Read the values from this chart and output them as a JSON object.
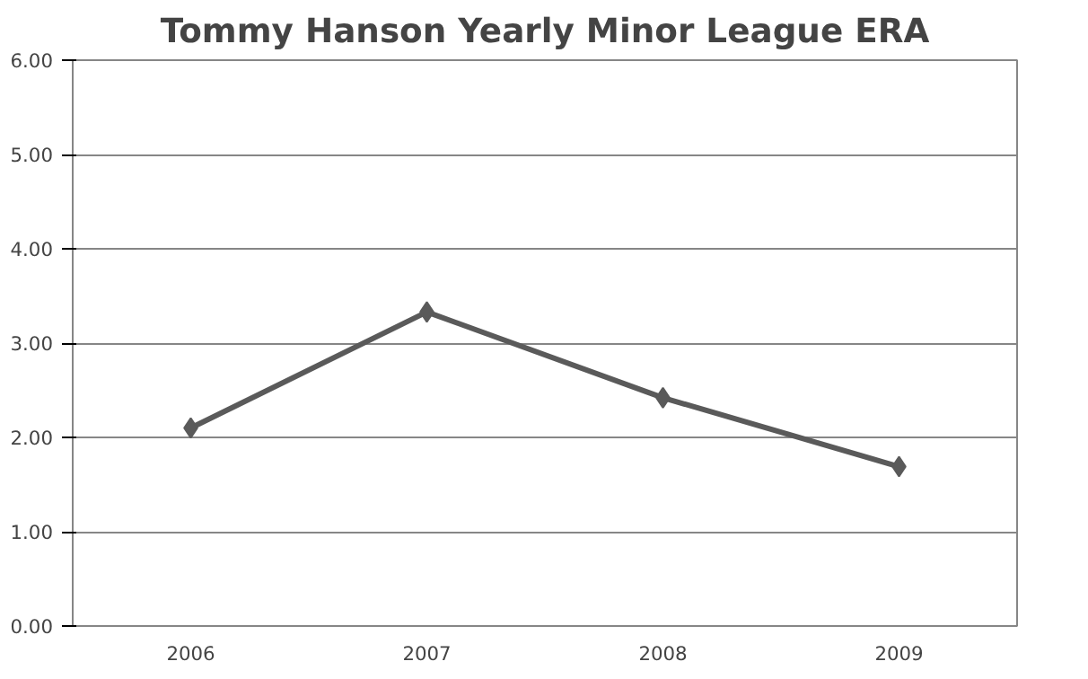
{
  "chart_data": {
    "type": "line",
    "title": "Tommy Hanson Yearly Minor League ERA",
    "categories": [
      "2006",
      "2007",
      "2008",
      "2009"
    ],
    "series": [
      {
        "color": "#5a5a5a",
        "values": [
          2.1,
          3.33,
          2.42,
          1.69
        ]
      }
    ],
    "ylim": [
      0,
      6
    ],
    "yticks": [
      {
        "value": 0,
        "label": "0.00"
      },
      {
        "value": 1,
        "label": "1.00"
      },
      {
        "value": 2,
        "label": "2.00"
      },
      {
        "value": 3,
        "label": "3.00"
      },
      {
        "value": 4,
        "label": "4.00"
      },
      {
        "value": 5,
        "label": "5.00"
      },
      {
        "value": 6,
        "label": "6.00"
      }
    ],
    "grid": "y",
    "marker": "diamond",
    "line_style": "solid"
  }
}
